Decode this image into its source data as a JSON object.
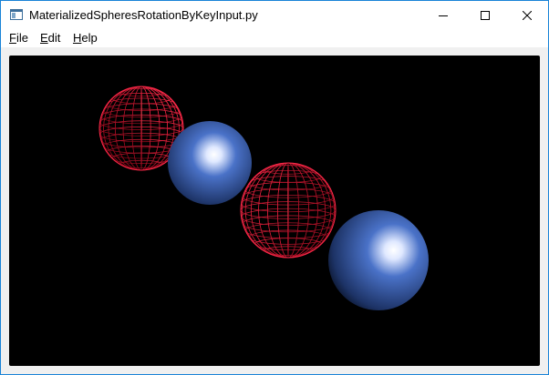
{
  "window": {
    "title": "MaterializedSpheresRotationByKeyInput.py",
    "border_color": "#1883d7",
    "controls": [
      "minimize-icon",
      "maximize-icon",
      "close-icon"
    ]
  },
  "menu": {
    "items": [
      {
        "mnemonic": "F",
        "rest": "ile"
      },
      {
        "mnemonic": "E",
        "rest": "dit"
      },
      {
        "mnemonic": "H",
        "rest": "elp"
      }
    ]
  },
  "scene": {
    "background": "#000000",
    "spheres": [
      {
        "style": "wireframe",
        "color": "#ff2a4a"
      },
      {
        "style": "solid",
        "color": "#4a72c8"
      },
      {
        "style": "wireframe",
        "color": "#ff2a4a"
      },
      {
        "style": "solid",
        "color": "#4a72c8"
      }
    ]
  }
}
